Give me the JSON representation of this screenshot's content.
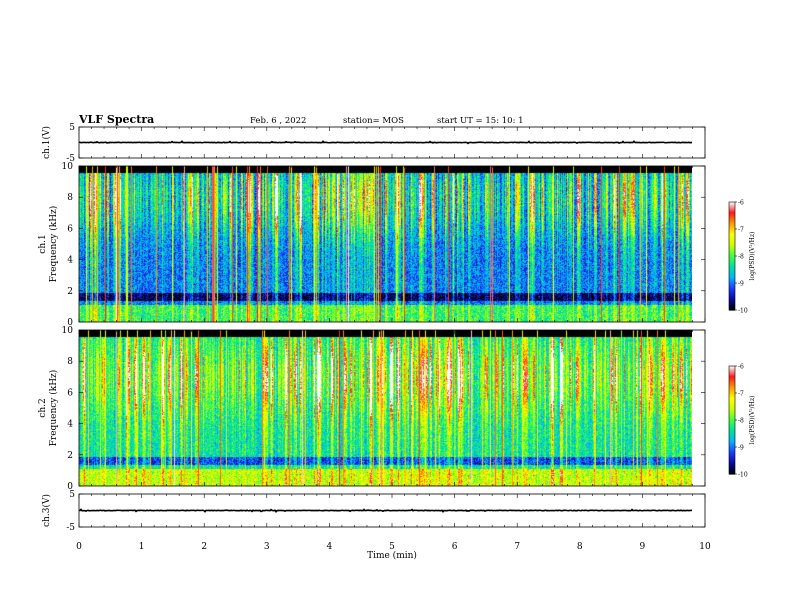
{
  "header": {
    "title": "VLF Spectra",
    "date": "Feb. 6 , 2022",
    "station": "station= MOS",
    "start": "start UT = 15: 10: 1"
  },
  "colors": {
    "colormap": [
      "#000000",
      "#0a0aa0",
      "#1e3cff",
      "#00b4ff",
      "#00e0a0",
      "#40ff40",
      "#c8ff00",
      "#ffff00",
      "#ff9a00",
      "#ff1a1a",
      "#ffffff"
    ]
  },
  "chart_data": [
    {
      "type": "line",
      "panel": "ch1-waveform",
      "ylabel": "ch.1(V)",
      "ylim": [
        -5,
        5
      ],
      "yticks": [
        "5",
        "-5"
      ],
      "xlim": [
        0,
        10
      ],
      "series": [
        {
          "x": [
            0,
            9.8
          ],
          "y": [
            0,
            0
          ]
        }
      ]
    },
    {
      "type": "heatmap",
      "panel": "ch1-spectrogram",
      "ylabel": "ch.1\nFrequency (kHz)",
      "ylim": [
        0,
        10
      ],
      "yticks": [
        "0",
        "2",
        "4",
        "6",
        "8",
        "10"
      ],
      "xlim": [
        0,
        10
      ],
      "data_end_min": 9.8,
      "background_log_psd": -9.2,
      "band_peak_khz": 8,
      "colorbar": {
        "label": "log(PSD)(V²/Hz)",
        "ticks": [
          "-6",
          "-7",
          "-8",
          "-9",
          "-10"
        ],
        "range": [
          -10,
          -6
        ]
      }
    },
    {
      "type": "heatmap",
      "panel": "ch2-spectrogram",
      "ylabel": "ch.2\nFrequency (kHz)",
      "ylim": [
        0,
        10
      ],
      "yticks": [
        "0",
        "2",
        "4",
        "6",
        "8",
        "10"
      ],
      "xlim": [
        0,
        10
      ],
      "data_end_min": 9.8,
      "background_log_psd": -8.6,
      "band_peak_khz": 7,
      "colorbar": {
        "label": "log(PSD)(V²/Hz)",
        "ticks": [
          "-6",
          "-7",
          "-8",
          "-9",
          "-10"
        ],
        "range": [
          -10,
          -6
        ]
      }
    },
    {
      "type": "line",
      "panel": "ch3-waveform",
      "ylabel": "ch.3(V)",
      "ylim": [
        -5,
        5
      ],
      "yticks": [
        "5",
        "-5"
      ],
      "xlim": [
        0,
        10
      ],
      "xlabel": "Time (min)",
      "xticks": [
        "0",
        "1",
        "2",
        "3",
        "4",
        "5",
        "6",
        "7",
        "8",
        "9",
        "10"
      ],
      "series": [
        {
          "x": [
            0,
            9.8
          ],
          "y": [
            0,
            0
          ]
        }
      ]
    }
  ]
}
